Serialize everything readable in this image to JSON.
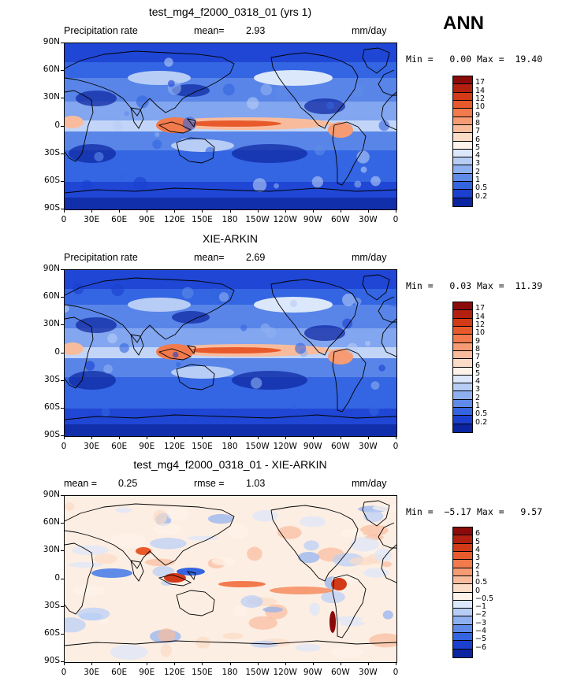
{
  "season": "ANN",
  "axes": {
    "lat_labels": [
      "90N",
      "60N",
      "30N",
      "0",
      "30S",
      "60S",
      "90S"
    ],
    "lon_labels": [
      "0",
      "30E",
      "60E",
      "90E",
      "120E",
      "150E",
      "180",
      "150W",
      "120W",
      "90W",
      "60W",
      "30W",
      "0"
    ]
  },
  "panels": [
    {
      "title": "test_mg4_f2000_0318_01 (yrs 1)",
      "left_label": "Precipitation rate",
      "stat1_label": "mean=",
      "stat1_value": "2.93",
      "stat2_label": "",
      "stat2_value": "",
      "units": "mm/day",
      "range_text": "Min =   0.00 Max =  19.40",
      "colorbar_labels": [
        "17",
        "14",
        "12",
        "10",
        "9",
        "8",
        "7",
        "6",
        "5",
        "4",
        "3",
        "2",
        "1",
        "0.5",
        "0.2"
      ],
      "colors": [
        "#8b0a0a",
        "#b3200f",
        "#d23a18",
        "#e85a2c",
        "#f27a4c",
        "#f69b73",
        "#f8bc9d",
        "#fbdcc6",
        "#fdf3ea",
        "#dbe7fa",
        "#b7cdf6",
        "#8fb0f0",
        "#5f8ae8",
        "#3464e0",
        "#1b40d0",
        "#0b249f"
      ]
    },
    {
      "title": "XIE-ARKIN",
      "left_label": "Precipitation rate",
      "stat1_label": "mean=",
      "stat1_value": "2.69",
      "stat2_label": "",
      "stat2_value": "",
      "units": "mm/day",
      "range_text": "Min =   0.03 Max =  11.39",
      "colorbar_labels": [
        "17",
        "14",
        "12",
        "10",
        "9",
        "8",
        "7",
        "6",
        "5",
        "4",
        "3",
        "2",
        "1",
        "0.5",
        "0.2"
      ],
      "colors": [
        "#8b0a0a",
        "#b3200f",
        "#d23a18",
        "#e85a2c",
        "#f27a4c",
        "#f69b73",
        "#f8bc9d",
        "#fbdcc6",
        "#fdf3ea",
        "#dbe7fa",
        "#b7cdf6",
        "#8fb0f0",
        "#5f8ae8",
        "#3464e0",
        "#1b40d0",
        "#0b249f"
      ]
    },
    {
      "title": "test_mg4_f2000_0318_01 - XIE-ARKIN",
      "left_label": "",
      "stat1_label": "mean =",
      "stat1_value": "0.25",
      "stat2_label": "rmse =",
      "stat2_value": "1.03",
      "units": "mm/day",
      "range_text": "Min =  −5.17 Max =   9.57",
      "colorbar_labels": [
        "6",
        "5",
        "4",
        "3",
        "2",
        "1",
        "0.5",
        "0",
        "−0.5",
        "−1",
        "−2",
        "−3",
        "−4",
        "−5",
        "−6"
      ],
      "colors": [
        "#8b0a0a",
        "#b3200f",
        "#d23a18",
        "#e85a2c",
        "#f27a4c",
        "#f69b73",
        "#f8bc9d",
        "#fbdcc6",
        "#fdf3ea",
        "#dbe7fa",
        "#b7cdf6",
        "#8fb0f0",
        "#5f8ae8",
        "#3464e0",
        "#1b40d0",
        "#0b249f"
      ]
    }
  ]
}
